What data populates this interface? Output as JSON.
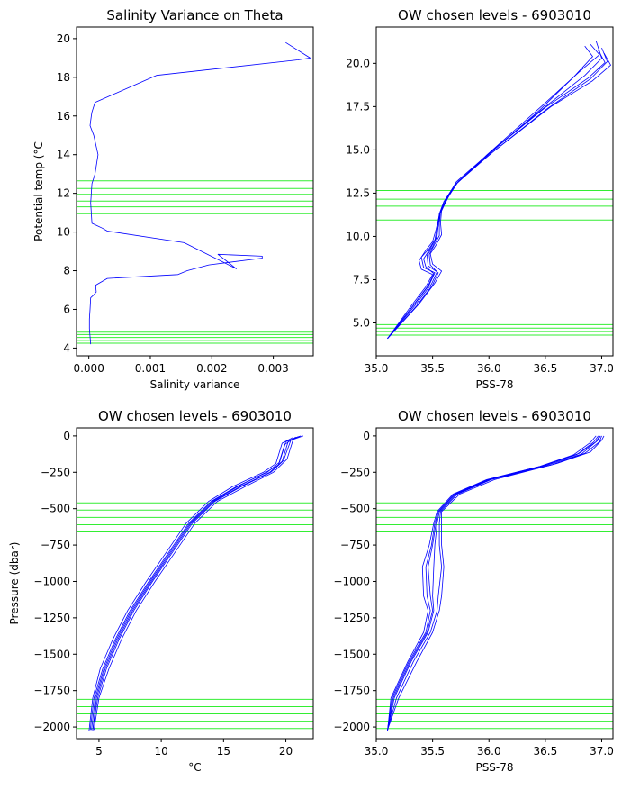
{
  "colors": {
    "profile": "#0000ff",
    "level": "#33ee33",
    "axes": "#000000"
  },
  "chart_data": [
    {
      "type": "line",
      "title": "Salinity Variance on Theta",
      "xlabel": "Salinity variance",
      "ylabel": "Potential temp (°C",
      "xlim": [
        -0.0002,
        0.00365
      ],
      "ylim": [
        3.6,
        20.6
      ],
      "xticks": [
        0,
        0.001,
        0.002,
        0.003
      ],
      "xtick_labels": [
        "0.000",
        "0.001",
        "0.002",
        "0.003"
      ],
      "yticks": [
        4,
        6,
        8,
        10,
        12,
        14,
        16,
        18,
        20
      ],
      "ytick_labels": [
        "4",
        "6",
        "8",
        "10",
        "12",
        "14",
        "16",
        "18",
        "20"
      ],
      "levels": [
        4.25,
        4.4,
        4.55,
        4.7,
        4.82,
        10.95,
        11.3,
        11.6,
        11.95,
        12.25,
        12.65
      ],
      "series": [
        {
          "x": [
            3e-05,
            1e-05,
            1e-05,
            2e-05,
            3e-05,
            8e-05,
            0.00012,
            0.00011,
            0.0003,
            0.00145,
            0.0016,
            0.00195,
            0.00282,
            0.00282,
            0.0021,
            0.0024,
            0.00155,
            0.0003,
            0.00022,
            0.00012,
            5e-05,
            3e-05,
            5e-05,
            0.0001,
            0.00015,
            8e-05,
            2e-05,
            4e-05,
            5e-05,
            0.0001,
            0.0011,
            0.0034,
            0.0036,
            0.0032
          ],
          "y": [
            4.2,
            5.0,
            5.5,
            6.0,
            6.6,
            6.75,
            6.9,
            7.25,
            7.6,
            7.8,
            8.0,
            8.3,
            8.65,
            8.75,
            8.85,
            8.1,
            9.45,
            10.05,
            10.2,
            10.35,
            10.45,
            11.5,
            12.5,
            13.0,
            14.0,
            15.0,
            15.5,
            16.0,
            16.2,
            16.7,
            18.1,
            18.9,
            19.0,
            19.8
          ]
        }
      ]
    },
    {
      "type": "line",
      "title": "OW chosen levels - 6903010",
      "xlabel": "PSS-78",
      "ylabel": "",
      "xlim": [
        35.0,
        37.1
      ],
      "ylim": [
        3.1,
        22.1
      ],
      "xticks": [
        35.0,
        35.5,
        36.0,
        36.5,
        37.0
      ],
      "xtick_labels": [
        "35.0",
        "35.5",
        "36.0",
        "36.5",
        "37.0"
      ],
      "yticks": [
        5.0,
        7.5,
        10.0,
        12.5,
        15.0,
        17.5,
        20.0
      ],
      "ytick_labels": [
        "5.0",
        "7.5",
        "10.0",
        "12.5",
        "15.0",
        "17.5",
        "20.0"
      ],
      "levels": [
        4.3,
        4.5,
        4.7,
        4.9,
        10.95,
        11.35,
        11.75,
        12.15,
        12.65
      ],
      "series": [
        {
          "x": [
            35.1,
            35.33,
            35.47,
            35.52,
            35.42,
            35.4,
            35.47,
            35.53,
            35.55,
            35.56,
            35.6,
            35.7,
            36.0,
            36.5,
            36.85,
            37.0,
            36.95
          ],
          "y": [
            4.1,
            6.0,
            7.2,
            7.9,
            8.2,
            8.8,
            9.3,
            9.9,
            10.6,
            11.3,
            12.0,
            13.0,
            14.8,
            17.5,
            19.3,
            20.3,
            21.3
          ]
        },
        {
          "x": [
            35.1,
            35.36,
            35.5,
            35.55,
            35.46,
            35.45,
            35.5,
            35.54,
            35.55,
            35.57,
            35.62,
            35.72,
            36.02,
            36.52,
            36.9,
            37.05,
            37.0
          ],
          "y": [
            4.1,
            6.0,
            7.2,
            7.9,
            8.3,
            8.9,
            9.4,
            10.0,
            10.7,
            11.4,
            12.1,
            13.1,
            14.8,
            17.4,
            19.1,
            20.1,
            20.9
          ]
        },
        {
          "x": [
            35.1,
            35.3,
            35.44,
            35.5,
            35.4,
            35.38,
            35.44,
            35.5,
            35.53,
            35.56,
            35.61,
            35.69,
            35.98,
            36.48,
            36.8,
            36.98,
            36.9
          ],
          "y": [
            4.1,
            5.9,
            7.1,
            7.8,
            8.1,
            8.6,
            9.2,
            9.7,
            10.4,
            11.2,
            11.9,
            12.9,
            14.7,
            17.6,
            19.5,
            20.5,
            21.1
          ]
        },
        {
          "x": [
            35.1,
            35.38,
            35.52,
            35.58,
            35.5,
            35.48,
            35.53,
            35.58,
            35.57,
            35.58,
            35.63,
            35.73,
            36.04,
            36.55,
            36.92,
            37.08,
            37.02
          ],
          "y": [
            4.1,
            6.1,
            7.3,
            8.0,
            8.4,
            9.0,
            9.5,
            10.1,
            10.8,
            11.5,
            12.2,
            13.2,
            14.9,
            17.5,
            19.0,
            19.9,
            20.6
          ]
        },
        {
          "x": [
            35.1,
            35.32,
            35.46,
            35.51,
            35.44,
            35.42,
            35.48,
            35.52,
            35.54,
            35.56,
            35.6,
            35.7,
            36.0,
            36.45,
            36.75,
            36.92,
            36.85
          ],
          "y": [
            4.1,
            5.95,
            7.15,
            7.85,
            8.25,
            8.7,
            9.3,
            9.8,
            10.5,
            11.3,
            12.0,
            13.0,
            14.75,
            17.3,
            19.2,
            20.4,
            21.0
          ]
        },
        {
          "x": [
            35.1,
            35.35,
            35.49,
            35.54,
            35.48,
            35.47,
            35.51,
            35.56,
            35.56,
            35.57,
            35.62,
            35.71,
            36.01,
            36.5,
            36.88,
            37.03,
            36.97
          ],
          "y": [
            4.1,
            6.05,
            7.25,
            7.95,
            8.35,
            8.95,
            9.45,
            10.05,
            10.75,
            11.45,
            12.15,
            13.15,
            14.85,
            17.45,
            19.15,
            20.05,
            20.75
          ]
        }
      ]
    },
    {
      "type": "line",
      "title": "OW chosen levels - 6903010",
      "xlabel": "°C",
      "ylabel": "Pressure (dbar)",
      "xlim": [
        3.2,
        22.2
      ],
      "ylim": [
        -2080,
        55
      ],
      "xticks": [
        5,
        10,
        15,
        20
      ],
      "xtick_labels": [
        "5",
        "10",
        "15",
        "20"
      ],
      "yticks": [
        0,
        -250,
        -500,
        -750,
        -1000,
        -1250,
        -1500,
        -1750,
        -2000
      ],
      "ytick_labels": [
        "0",
        "−250",
        "−500",
        "−750",
        "−1000",
        "−1250",
        "−1500",
        "−1750",
        "−2000"
      ],
      "levels": [
        -460,
        -510,
        -560,
        -610,
        -660,
        -1810,
        -1860,
        -1910,
        -1960,
        -2010
      ],
      "series": [
        {
          "x": [
            4.3,
            4.6,
            5.3,
            6.3,
            7.5,
            9.0,
            10.6,
            12.2,
            14.0,
            16.0,
            18.5,
            19.5,
            20.0,
            21.0
          ],
          "y": [
            -2020,
            -1800,
            -1600,
            -1400,
            -1200,
            -1000,
            -800,
            -600,
            -450,
            -350,
            -250,
            -180,
            -40,
            -5
          ]
        },
        {
          "x": [
            4.5,
            4.9,
            5.6,
            6.6,
            7.8,
            9.3,
            10.9,
            12.5,
            14.3,
            16.4,
            18.8,
            19.8,
            20.4,
            21.4
          ],
          "y": [
            -2020,
            -1800,
            -1600,
            -1400,
            -1200,
            -1000,
            -800,
            -600,
            -450,
            -350,
            -250,
            -170,
            -30,
            0
          ]
        },
        {
          "x": [
            4.2,
            4.5,
            5.1,
            6.1,
            7.3,
            8.8,
            10.4,
            12.0,
            13.8,
            15.7,
            18.2,
            19.2,
            19.7,
            20.6
          ],
          "y": [
            -2030,
            -1800,
            -1600,
            -1400,
            -1200,
            -1000,
            -800,
            -600,
            -450,
            -350,
            -250,
            -190,
            -50,
            -10
          ]
        },
        {
          "x": [
            4.6,
            5.0,
            5.8,
            6.8,
            8.0,
            9.5,
            11.1,
            12.7,
            14.5,
            16.7,
            19.0,
            20.1,
            20.6,
            21.2
          ],
          "y": [
            -2020,
            -1800,
            -1600,
            -1400,
            -1200,
            -1000,
            -800,
            -600,
            -450,
            -350,
            -250,
            -160,
            -20,
            0
          ]
        },
        {
          "x": [
            4.4,
            4.7,
            5.4,
            6.4,
            7.6,
            9.1,
            10.7,
            12.3,
            14.1,
            16.1,
            18.4,
            19.4,
            19.9,
            20.8
          ],
          "y": [
            -2020,
            -1800,
            -1600,
            -1400,
            -1200,
            -1000,
            -800,
            -600,
            -450,
            -350,
            -250,
            -200,
            -60,
            -8
          ]
        },
        {
          "x": [
            4.5,
            4.8,
            5.5,
            6.5,
            7.7,
            9.2,
            10.8,
            12.4,
            14.2,
            16.3,
            18.7,
            19.7,
            20.2,
            21.1
          ],
          "y": [
            -2025,
            -1800,
            -1600,
            -1400,
            -1200,
            -1000,
            -800,
            -600,
            -450,
            -350,
            -250,
            -175,
            -35,
            -3
          ]
        }
      ]
    },
    {
      "type": "line",
      "title": "OW chosen levels - 6903010",
      "xlabel": "PSS-78",
      "ylabel": "",
      "xlim": [
        35.0,
        37.1
      ],
      "ylim": [
        -2080,
        55
      ],
      "xticks": [
        35.0,
        35.5,
        36.0,
        36.5,
        37.0
      ],
      "xtick_labels": [
        "35.0",
        "35.5",
        "36.0",
        "36.5",
        "37.0"
      ],
      "yticks": [
        0,
        -250,
        -500,
        -750,
        -1000,
        -1250,
        -1500,
        -1750,
        -2000
      ],
      "ytick_labels": [
        "0",
        "−250",
        "−500",
        "−750",
        "−1000",
        "−1250",
        "−1500",
        "−1750",
        "−2000"
      ],
      "levels": [
        -460,
        -510,
        -560,
        -610,
        -660,
        -1810,
        -1860,
        -1910,
        -1960,
        -2010
      ],
      "series": [
        {
          "x": [
            35.1,
            35.15,
            35.3,
            35.45,
            35.5,
            35.48,
            35.46,
            35.5,
            35.53,
            35.55,
            35.7,
            36.0,
            36.5,
            36.8,
            36.95,
            36.98
          ],
          "y": [
            -2020,
            -1800,
            -1550,
            -1350,
            -1200,
            -1100,
            -900,
            -750,
            -600,
            -520,
            -400,
            -300,
            -200,
            -120,
            -40,
            0
          ]
        },
        {
          "x": [
            35.1,
            35.18,
            35.33,
            35.48,
            35.54,
            35.55,
            35.58,
            35.56,
            35.56,
            35.57,
            35.72,
            36.02,
            36.55,
            36.85,
            36.98,
            37.0
          ],
          "y": [
            -2020,
            -1800,
            -1550,
            -1350,
            -1200,
            -1100,
            -900,
            -750,
            -600,
            -520,
            -400,
            -300,
            -200,
            -120,
            -40,
            0
          ]
        },
        {
          "x": [
            35.1,
            35.13,
            35.28,
            35.42,
            35.46,
            35.42,
            35.41,
            35.47,
            35.51,
            35.54,
            35.68,
            35.98,
            36.45,
            36.75,
            36.9,
            36.95
          ],
          "y": [
            -2030,
            -1800,
            -1550,
            -1350,
            -1200,
            -1100,
            -900,
            -750,
            -600,
            -520,
            -400,
            -300,
            -210,
            -130,
            -45,
            0
          ]
        },
        {
          "x": [
            35.1,
            35.2,
            35.36,
            35.5,
            35.56,
            35.58,
            35.6,
            35.58,
            35.58,
            35.58,
            35.74,
            36.05,
            36.6,
            36.9,
            37.0,
            37.02
          ],
          "y": [
            -2020,
            -1800,
            -1550,
            -1350,
            -1200,
            -1100,
            -900,
            -750,
            -600,
            -520,
            -400,
            -300,
            -190,
            -110,
            -30,
            0
          ]
        },
        {
          "x": [
            35.1,
            35.16,
            35.31,
            35.46,
            35.51,
            35.5,
            35.51,
            35.52,
            35.54,
            35.56,
            35.71,
            36.01,
            36.52,
            36.82,
            36.96,
            36.99
          ],
          "y": [
            -2025,
            -1800,
            -1550,
            -1350,
            -1200,
            -1100,
            -900,
            -750,
            -600,
            -520,
            -400,
            -300,
            -200,
            -125,
            -35,
            0
          ]
        },
        {
          "x": [
            35.1,
            35.14,
            35.29,
            35.44,
            35.48,
            35.45,
            35.44,
            35.49,
            35.52,
            35.55,
            35.69,
            35.99,
            36.48,
            36.78,
            36.93,
            36.97
          ],
          "y": [
            -2020,
            -1800,
            -1550,
            -1350,
            -1200,
            -1100,
            -900,
            -750,
            -600,
            -520,
            -400,
            -300,
            -205,
            -128,
            -42,
            0
          ]
        }
      ]
    }
  ]
}
